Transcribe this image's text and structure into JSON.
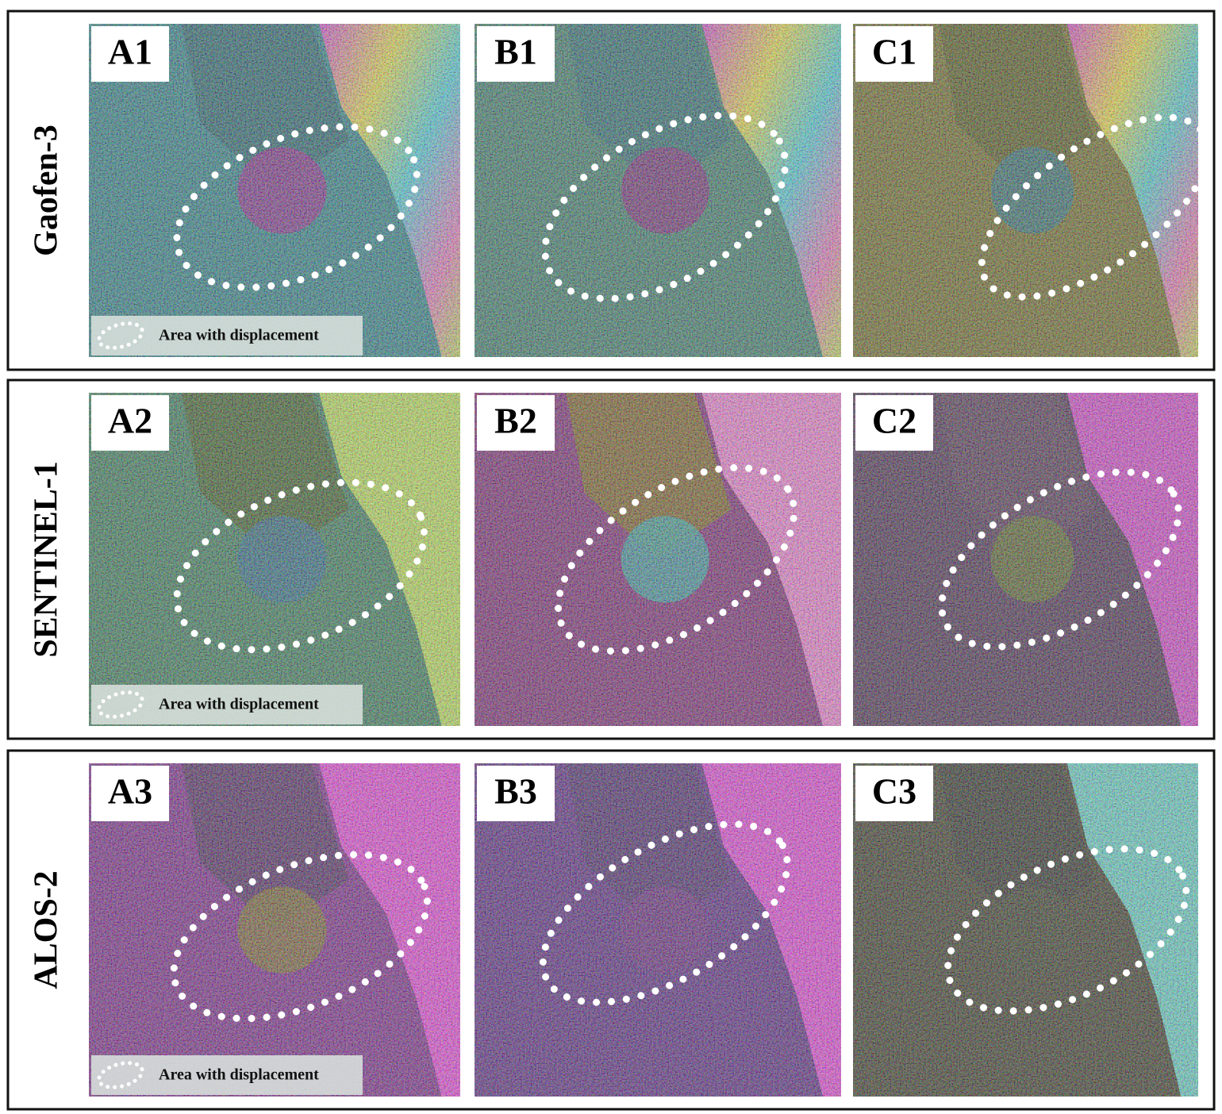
{
  "rows": [
    {
      "label": "Gaofen-3",
      "panels": [
        "A1",
        "B1",
        "C1"
      ]
    },
    {
      "label": "SENTINEL-1",
      "panels": [
        "A2",
        "B2",
        "C2"
      ]
    },
    {
      "label": "ALOS-2",
      "panels": [
        "A3",
        "B3",
        "C3"
      ]
    }
  ],
  "legend": {
    "text": "Area with displacement"
  }
}
